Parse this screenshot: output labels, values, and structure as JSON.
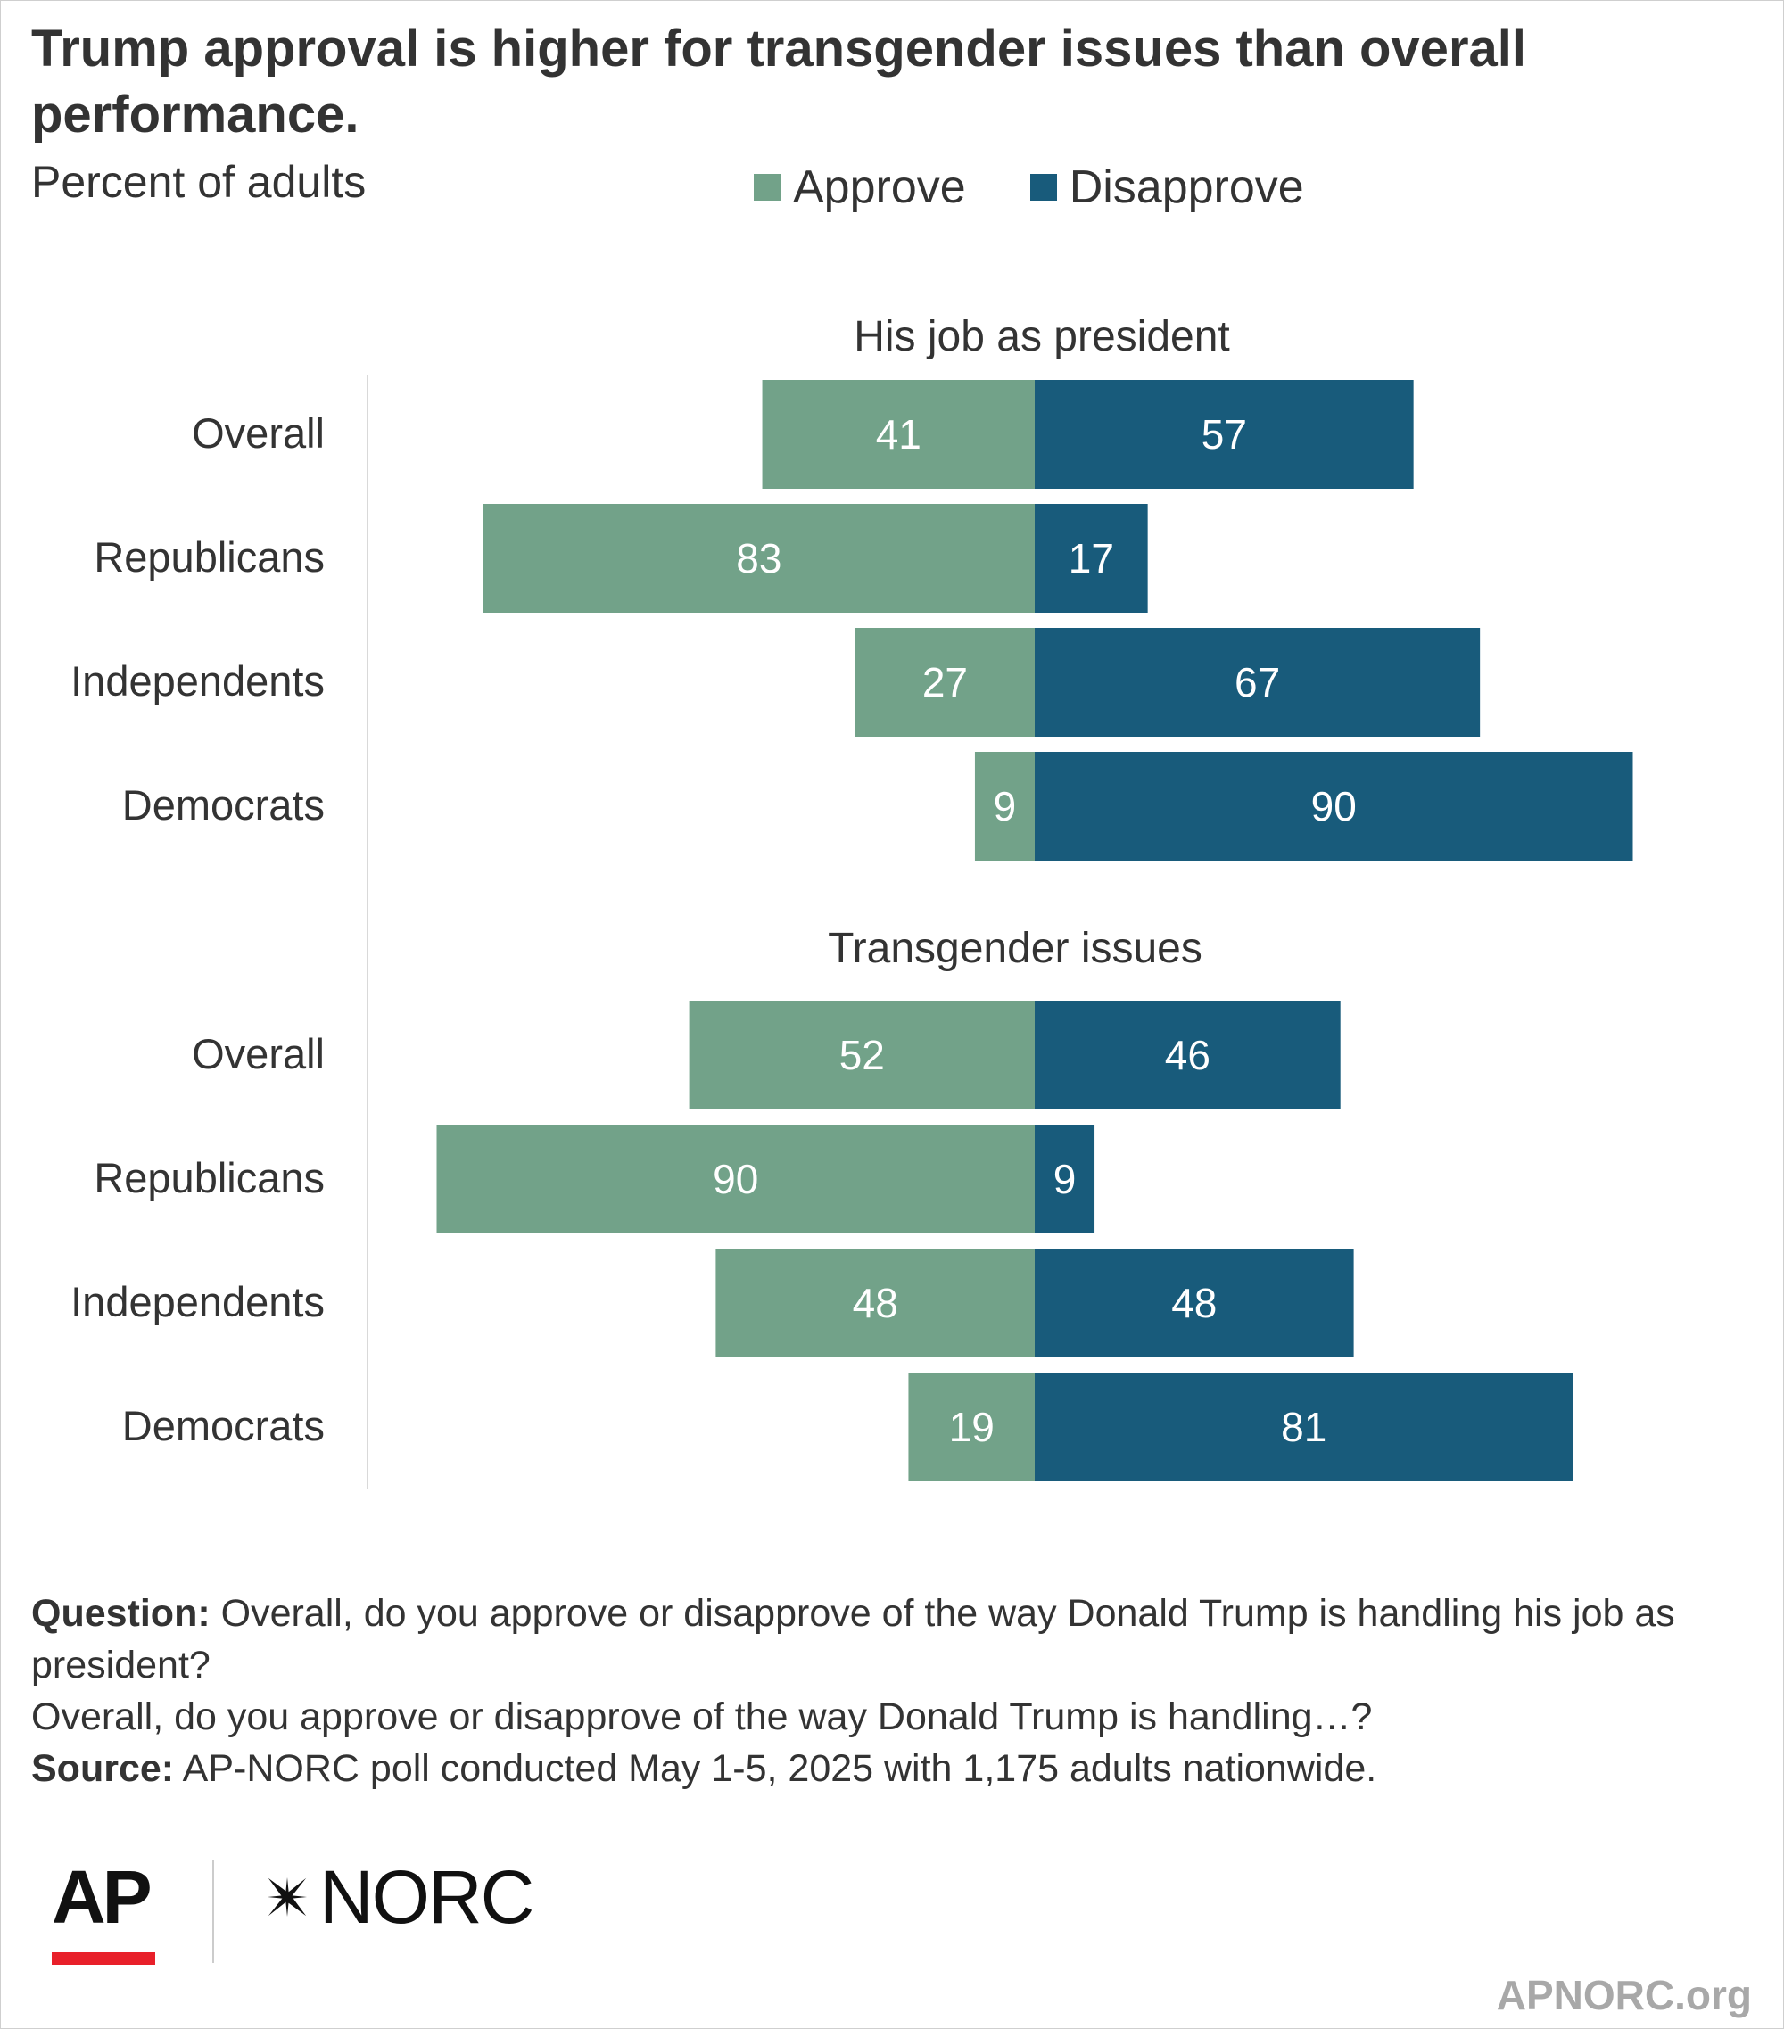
{
  "chart_data": {
    "type": "bar",
    "orientation": "horizontal-diverging",
    "title": "Trump approval is higher for transgender issues than overall performance.",
    "subtitle": "Percent of adults",
    "legend": [
      {
        "name": "Approve",
        "color": "#72a289"
      },
      {
        "name": "Disapprove",
        "color": "#185b7b"
      }
    ],
    "legend_position": "top",
    "categories": [
      "Overall",
      "Republicans",
      "Independents",
      "Democrats"
    ],
    "groups": [
      {
        "title": "His job as president",
        "series": [
          {
            "name": "Approve",
            "values": [
              41,
              83,
              27,
              9
            ]
          },
          {
            "name": "Disapprove",
            "values": [
              57,
              17,
              67,
              90
            ]
          }
        ]
      },
      {
        "title": "Transgender issues",
        "series": [
          {
            "name": "Approve",
            "values": [
              52,
              90,
              48,
              19
            ]
          },
          {
            "name": "Disapprove",
            "values": [
              46,
              9,
              48,
              81
            ]
          }
        ]
      }
    ],
    "grid": false
  },
  "footnote": {
    "question_label": "Question:",
    "question_text": " Overall, do you approve or disapprove of the way Donald Trump is handling his job as president?",
    "question_text2": "Overall, do you approve or disapprove of the way Donald Trump is handling…?",
    "source_label": "Source:",
    "source_text": " AP-NORC poll conducted May 1-5, 2025 with 1,175 adults nationwide."
  },
  "logos": {
    "ap": "AP",
    "norc": "NORC",
    "norc_icon": "norc-star-icon"
  },
  "site": "APNORC.org"
}
